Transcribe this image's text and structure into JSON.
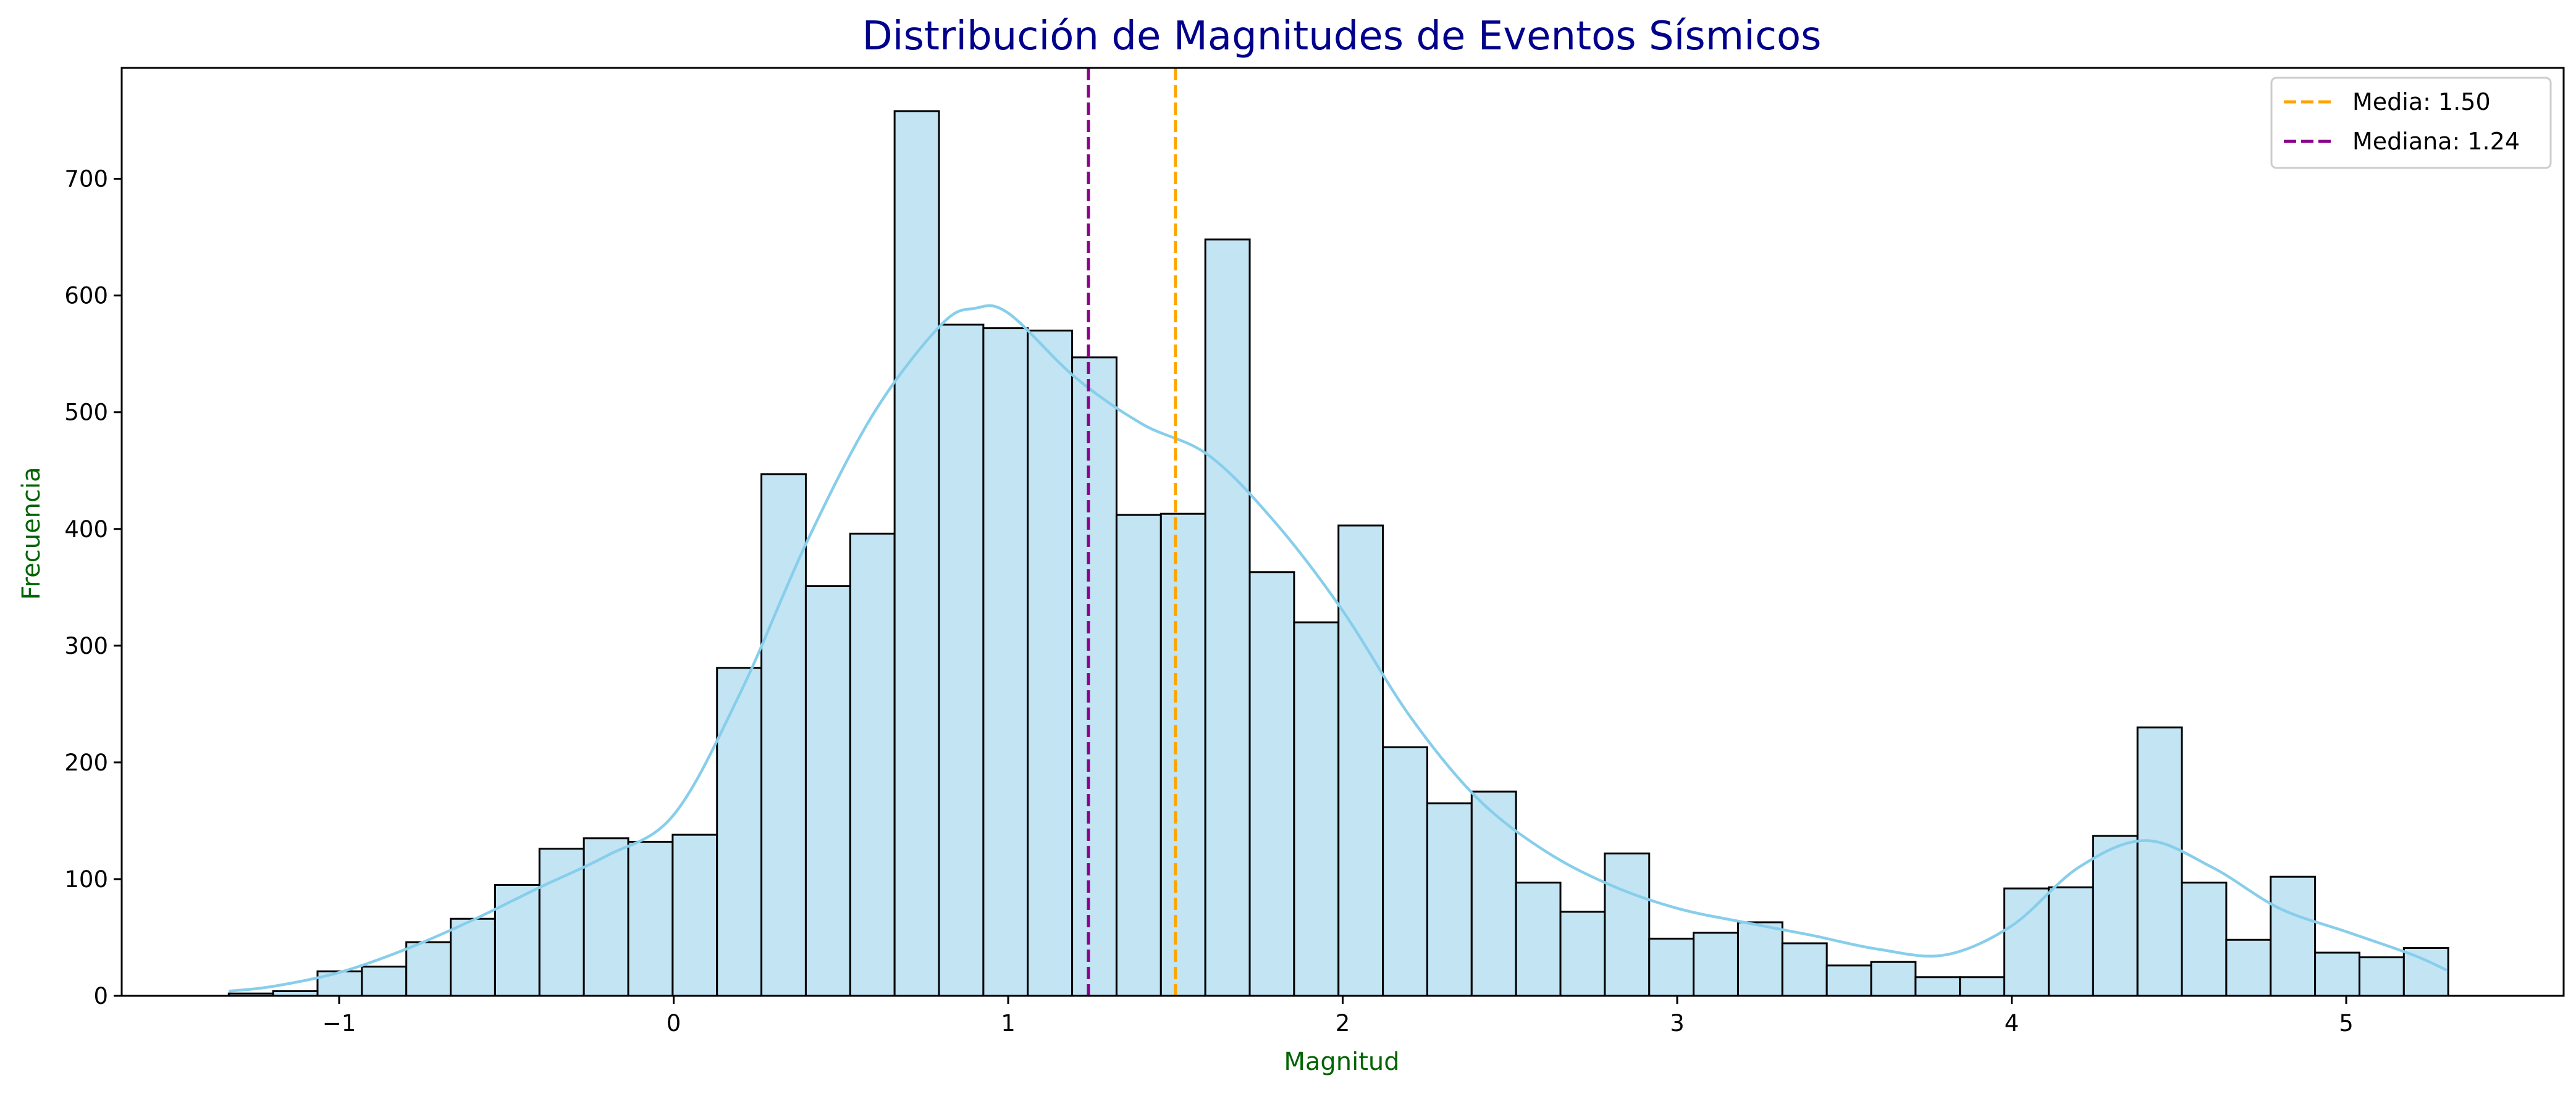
{
  "chart_data": {
    "type": "bar",
    "title": "Distribución de Magnitudes de Eventos Sísmicos",
    "xlabel": "Magnitud",
    "ylabel": "Frecuencia",
    "xlim": [
      -1.65,
      5.65
    ],
    "ylim": [
      0,
      795
    ],
    "xticks": [
      -1,
      0,
      1,
      2,
      3,
      4,
      5
    ],
    "yticks": [
      0,
      100,
      200,
      300,
      400,
      500,
      600,
      700
    ],
    "grid": false,
    "legend_position": "top-right",
    "bin_start": -1.33,
    "bin_width": 0.1327,
    "counts": [
      2,
      4,
      21,
      25,
      46,
      66,
      95,
      126,
      135,
      132,
      138,
      281,
      447,
      351,
      396,
      758,
      575,
      572,
      570,
      547,
      412,
      413,
      648,
      363,
      320,
      403,
      213,
      165,
      175,
      97,
      72,
      122,
      49,
      54,
      63,
      45,
      26,
      29,
      16,
      16,
      92,
      93,
      137,
      230,
      97,
      48,
      102,
      37,
      33,
      41
    ],
    "kde": {
      "x": [
        -1.33,
        -1.2,
        -1.0,
        -0.8,
        -0.6,
        -0.4,
        -0.2,
        0.0,
        0.2,
        0.4,
        0.6,
        0.8,
        0.9,
        1.0,
        1.2,
        1.4,
        1.6,
        1.8,
        2.0,
        2.2,
        2.4,
        2.6,
        2.8,
        3.0,
        3.2,
        3.4,
        3.6,
        3.8,
        4.0,
        4.2,
        4.4,
        4.6,
        4.8,
        5.0,
        5.2,
        5.3
      ],
      "y": [
        4,
        8,
        20,
        40,
        65,
        93,
        120,
        155,
        260,
        390,
        500,
        575,
        589,
        585,
        530,
        490,
        463,
        405,
        330,
        240,
        170,
        125,
        95,
        75,
        63,
        52,
        40,
        35,
        60,
        110,
        133,
        110,
        75,
        55,
        35,
        22
      ]
    },
    "reference_lines": [
      {
        "label": "Media: 1.50",
        "x": 1.5,
        "color": "#ffa500"
      },
      {
        "label": "Mediana: 1.24",
        "x": 1.24,
        "color": "#8b008b"
      }
    ],
    "colors": {
      "bar_fill": "#c2e4f3",
      "bar_edge": "#000000",
      "kde_line": "#87ceeb",
      "title": "#00008b",
      "axis_label": "#006400"
    }
  }
}
